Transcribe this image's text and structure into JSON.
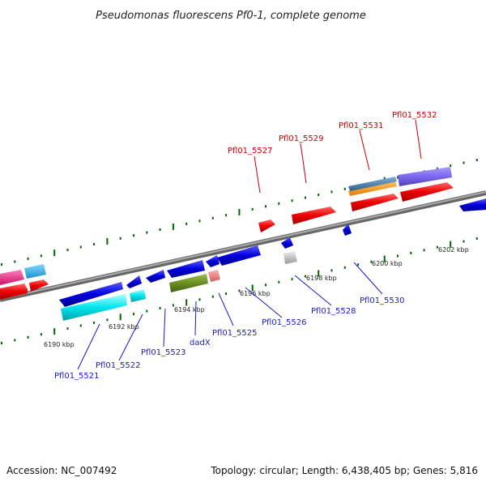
{
  "title": "Pseudomonas fluorescens Pf0-1, complete genome",
  "footer": {
    "accession": "Accession: NC_007492",
    "summary": "Topology: circular; Length: 6,438,405 bp; Genes: 5,816"
  },
  "scale_labels": [
    "6190 kbp",
    "6192 kbp",
    "6194 kbp",
    "6196 kbp",
    "6198 kbp",
    "6200 kbp",
    "6202 kbp"
  ],
  "forward_gene_labels": [
    "Pfl01_5527",
    "Pfl01_5529",
    "Pfl01_5531",
    "Pfl01_5532"
  ],
  "reverse_gene_labels": [
    "Pfl01_5521",
    "Pfl01_5522",
    "Pfl01_5523",
    "dadX",
    "Pfl01_5525",
    "Pfl01_5526",
    "Pfl01_5528",
    "Pfl01_5530"
  ],
  "colors": {
    "forward_gene": "#ee0000",
    "reverse_gene": "#0000dd",
    "tick": "#006600",
    "backbone": "#888888",
    "cyan_gene": "#00e5ee",
    "olive_gene": "#6b8e23",
    "purple_gene": "#7b68ee",
    "orange_gene": "#ff9900",
    "steelblue_gene": "#4682b4",
    "pink_gene": "#ee3388",
    "salmon_gene": "#f08080",
    "gray_gene": "#bbbbbb"
  }
}
